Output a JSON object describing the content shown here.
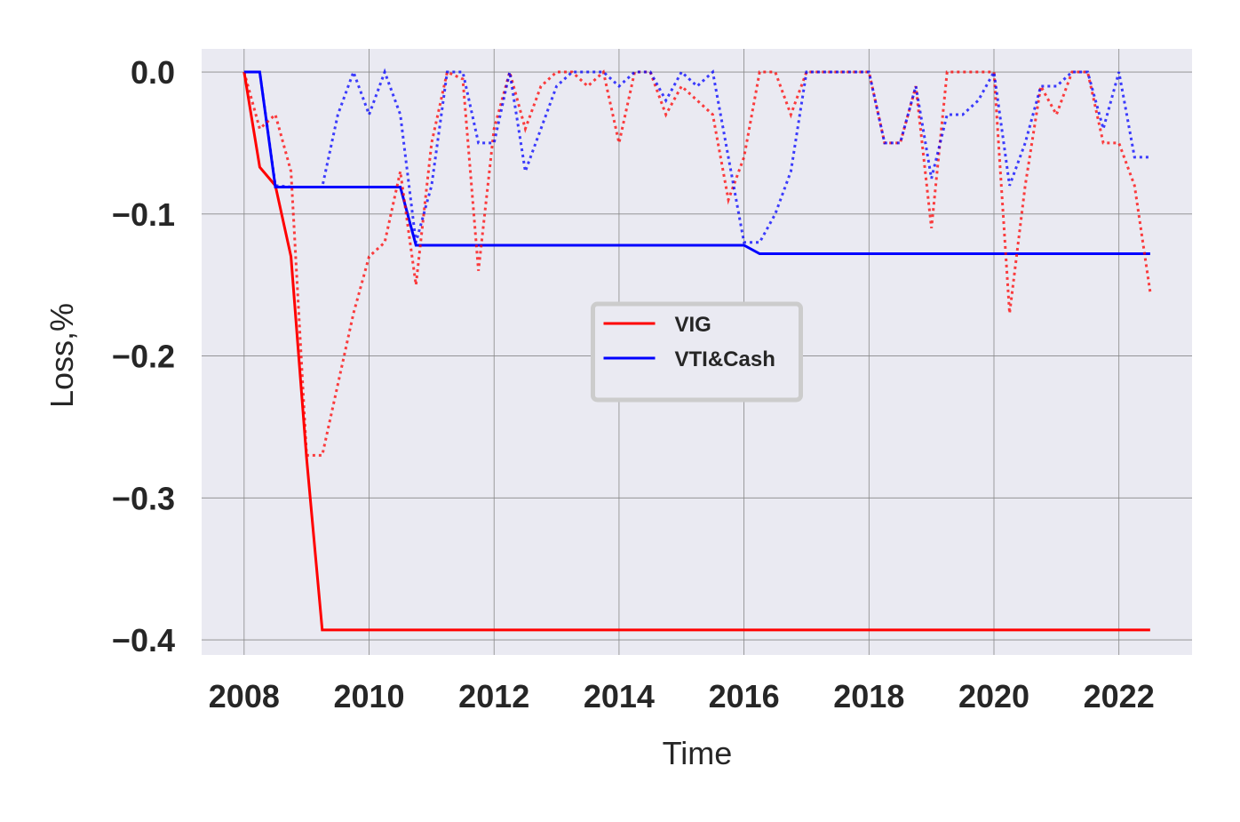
{
  "chart_data": {
    "type": "line",
    "xlabel": "Time",
    "ylabel": "Loss,%",
    "x": [
      2008,
      2008.25,
      2008.5,
      2008.75,
      2009,
      2009.25,
      2009.5,
      2009.75,
      2010,
      2010.25,
      2010.5,
      2010.75,
      2011,
      2011.25,
      2011.5,
      2011.75,
      2012,
      2012.25,
      2012.5,
      2012.75,
      2013,
      2013.25,
      2013.5,
      2013.75,
      2014,
      2014.25,
      2014.5,
      2014.75,
      2015,
      2015.25,
      2015.5,
      2015.75,
      2016,
      2016.25,
      2016.5,
      2016.75,
      2017,
      2017.25,
      2017.5,
      2017.75,
      2018,
      2018.25,
      2018.5,
      2018.75,
      2019,
      2019.25,
      2019.5,
      2019.75,
      2020,
      2020.25,
      2020.5,
      2020.75,
      2021,
      2021.25,
      2021.5,
      2021.75,
      2022,
      2022.25,
      2022.5
    ],
    "series": [
      {
        "name": "VIG",
        "color": "#ff0000",
        "dashed": false,
        "values": [
          0,
          -0.067,
          -0.08,
          -0.13,
          -0.272,
          -0.393,
          -0.393,
          -0.393,
          -0.393,
          -0.393,
          -0.393,
          -0.393,
          -0.393,
          -0.393,
          -0.393,
          -0.393,
          -0.393,
          -0.393,
          -0.393,
          -0.393,
          -0.393,
          -0.393,
          -0.393,
          -0.393,
          -0.393,
          -0.393,
          -0.393,
          -0.393,
          -0.393,
          -0.393,
          -0.393,
          -0.393,
          -0.393,
          -0.393,
          -0.393,
          -0.393,
          -0.393,
          -0.393,
          -0.393,
          -0.393,
          -0.393,
          -0.393,
          -0.393,
          -0.393,
          -0.393,
          -0.393,
          -0.393,
          -0.393,
          -0.393,
          -0.393,
          -0.393,
          -0.393,
          -0.393,
          -0.393,
          -0.393,
          -0.393,
          -0.393,
          -0.393,
          -0.393
        ]
      },
      {
        "name": "VTI&Cash",
        "color": "#0000ff",
        "dashed": false,
        "values": [
          0,
          0,
          -0.081,
          -0.081,
          -0.081,
          -0.081,
          -0.081,
          -0.081,
          -0.081,
          -0.081,
          -0.081,
          -0.122,
          -0.122,
          -0.122,
          -0.122,
          -0.122,
          -0.122,
          -0.122,
          -0.122,
          -0.122,
          -0.122,
          -0.122,
          -0.122,
          -0.122,
          -0.122,
          -0.122,
          -0.122,
          -0.122,
          -0.122,
          -0.122,
          -0.122,
          -0.122,
          -0.122,
          -0.128,
          -0.128,
          -0.128,
          -0.128,
          -0.128,
          -0.128,
          -0.128,
          -0.128,
          -0.128,
          -0.128,
          -0.128,
          -0.128,
          -0.128,
          -0.128,
          -0.128,
          -0.128,
          -0.128,
          -0.128,
          -0.128,
          -0.128,
          -0.128,
          -0.128,
          -0.128,
          -0.128,
          -0.128,
          -0.128
        ]
      },
      {
        "color": "#ff0000",
        "dashed": true,
        "values": [
          0,
          -0.04,
          -0.03,
          -0.07,
          -0.27,
          -0.27,
          -0.22,
          -0.17,
          -0.13,
          -0.12,
          -0.07,
          -0.15,
          -0.05,
          0,
          -0.005,
          -0.14,
          -0.04,
          0,
          -0.04,
          -0.01,
          0,
          0,
          -0.01,
          0,
          -0.05,
          0,
          0,
          -0.03,
          -0.01,
          -0.02,
          -0.03,
          -0.09,
          -0.06,
          0,
          0,
          -0.03,
          0,
          0,
          0,
          0,
          0,
          -0.05,
          -0.05,
          -0.01,
          -0.11,
          0,
          0,
          0,
          0,
          -0.17,
          -0.08,
          -0.01,
          -0.03,
          0,
          0,
          -0.05,
          -0.05,
          -0.08,
          -0.155
        ]
      },
      {
        "color": "#0000ff",
        "dashed": true,
        "values": [
          0,
          0,
          -0.08,
          -0.081,
          -0.081,
          -0.081,
          -0.03,
          0,
          -0.03,
          0,
          -0.03,
          -0.12,
          -0.08,
          0,
          0,
          -0.05,
          -0.05,
          0,
          -0.07,
          -0.04,
          -0.01,
          0,
          0,
          0,
          -0.01,
          0,
          0,
          -0.02,
          0,
          -0.01,
          0,
          -0.06,
          -0.12,
          -0.12,
          -0.1,
          -0.07,
          0,
          0,
          0,
          0,
          0,
          -0.05,
          -0.05,
          -0.01,
          -0.075,
          -0.03,
          -0.03,
          -0.02,
          0,
          -0.08,
          -0.05,
          -0.01,
          -0.01,
          0,
          0,
          -0.04,
          0,
          -0.06,
          -0.06
        ]
      }
    ],
    "xlim": [
      2007.32,
      2023.17
    ],
    "ylim": [
      -0.4106,
      0.0163
    ],
    "xticks": [
      2008,
      2010,
      2012,
      2014,
      2016,
      2018,
      2020,
      2022
    ],
    "yticks": [
      {
        "value": 0,
        "label": "0.0"
      },
      {
        "value": -0.1,
        "label": "−0.1"
      },
      {
        "value": -0.2,
        "label": "−0.2"
      },
      {
        "value": -0.3,
        "label": "−0.3"
      },
      {
        "value": -0.4,
        "label": "−0.4"
      }
    ],
    "grid": true,
    "legend": "center"
  }
}
